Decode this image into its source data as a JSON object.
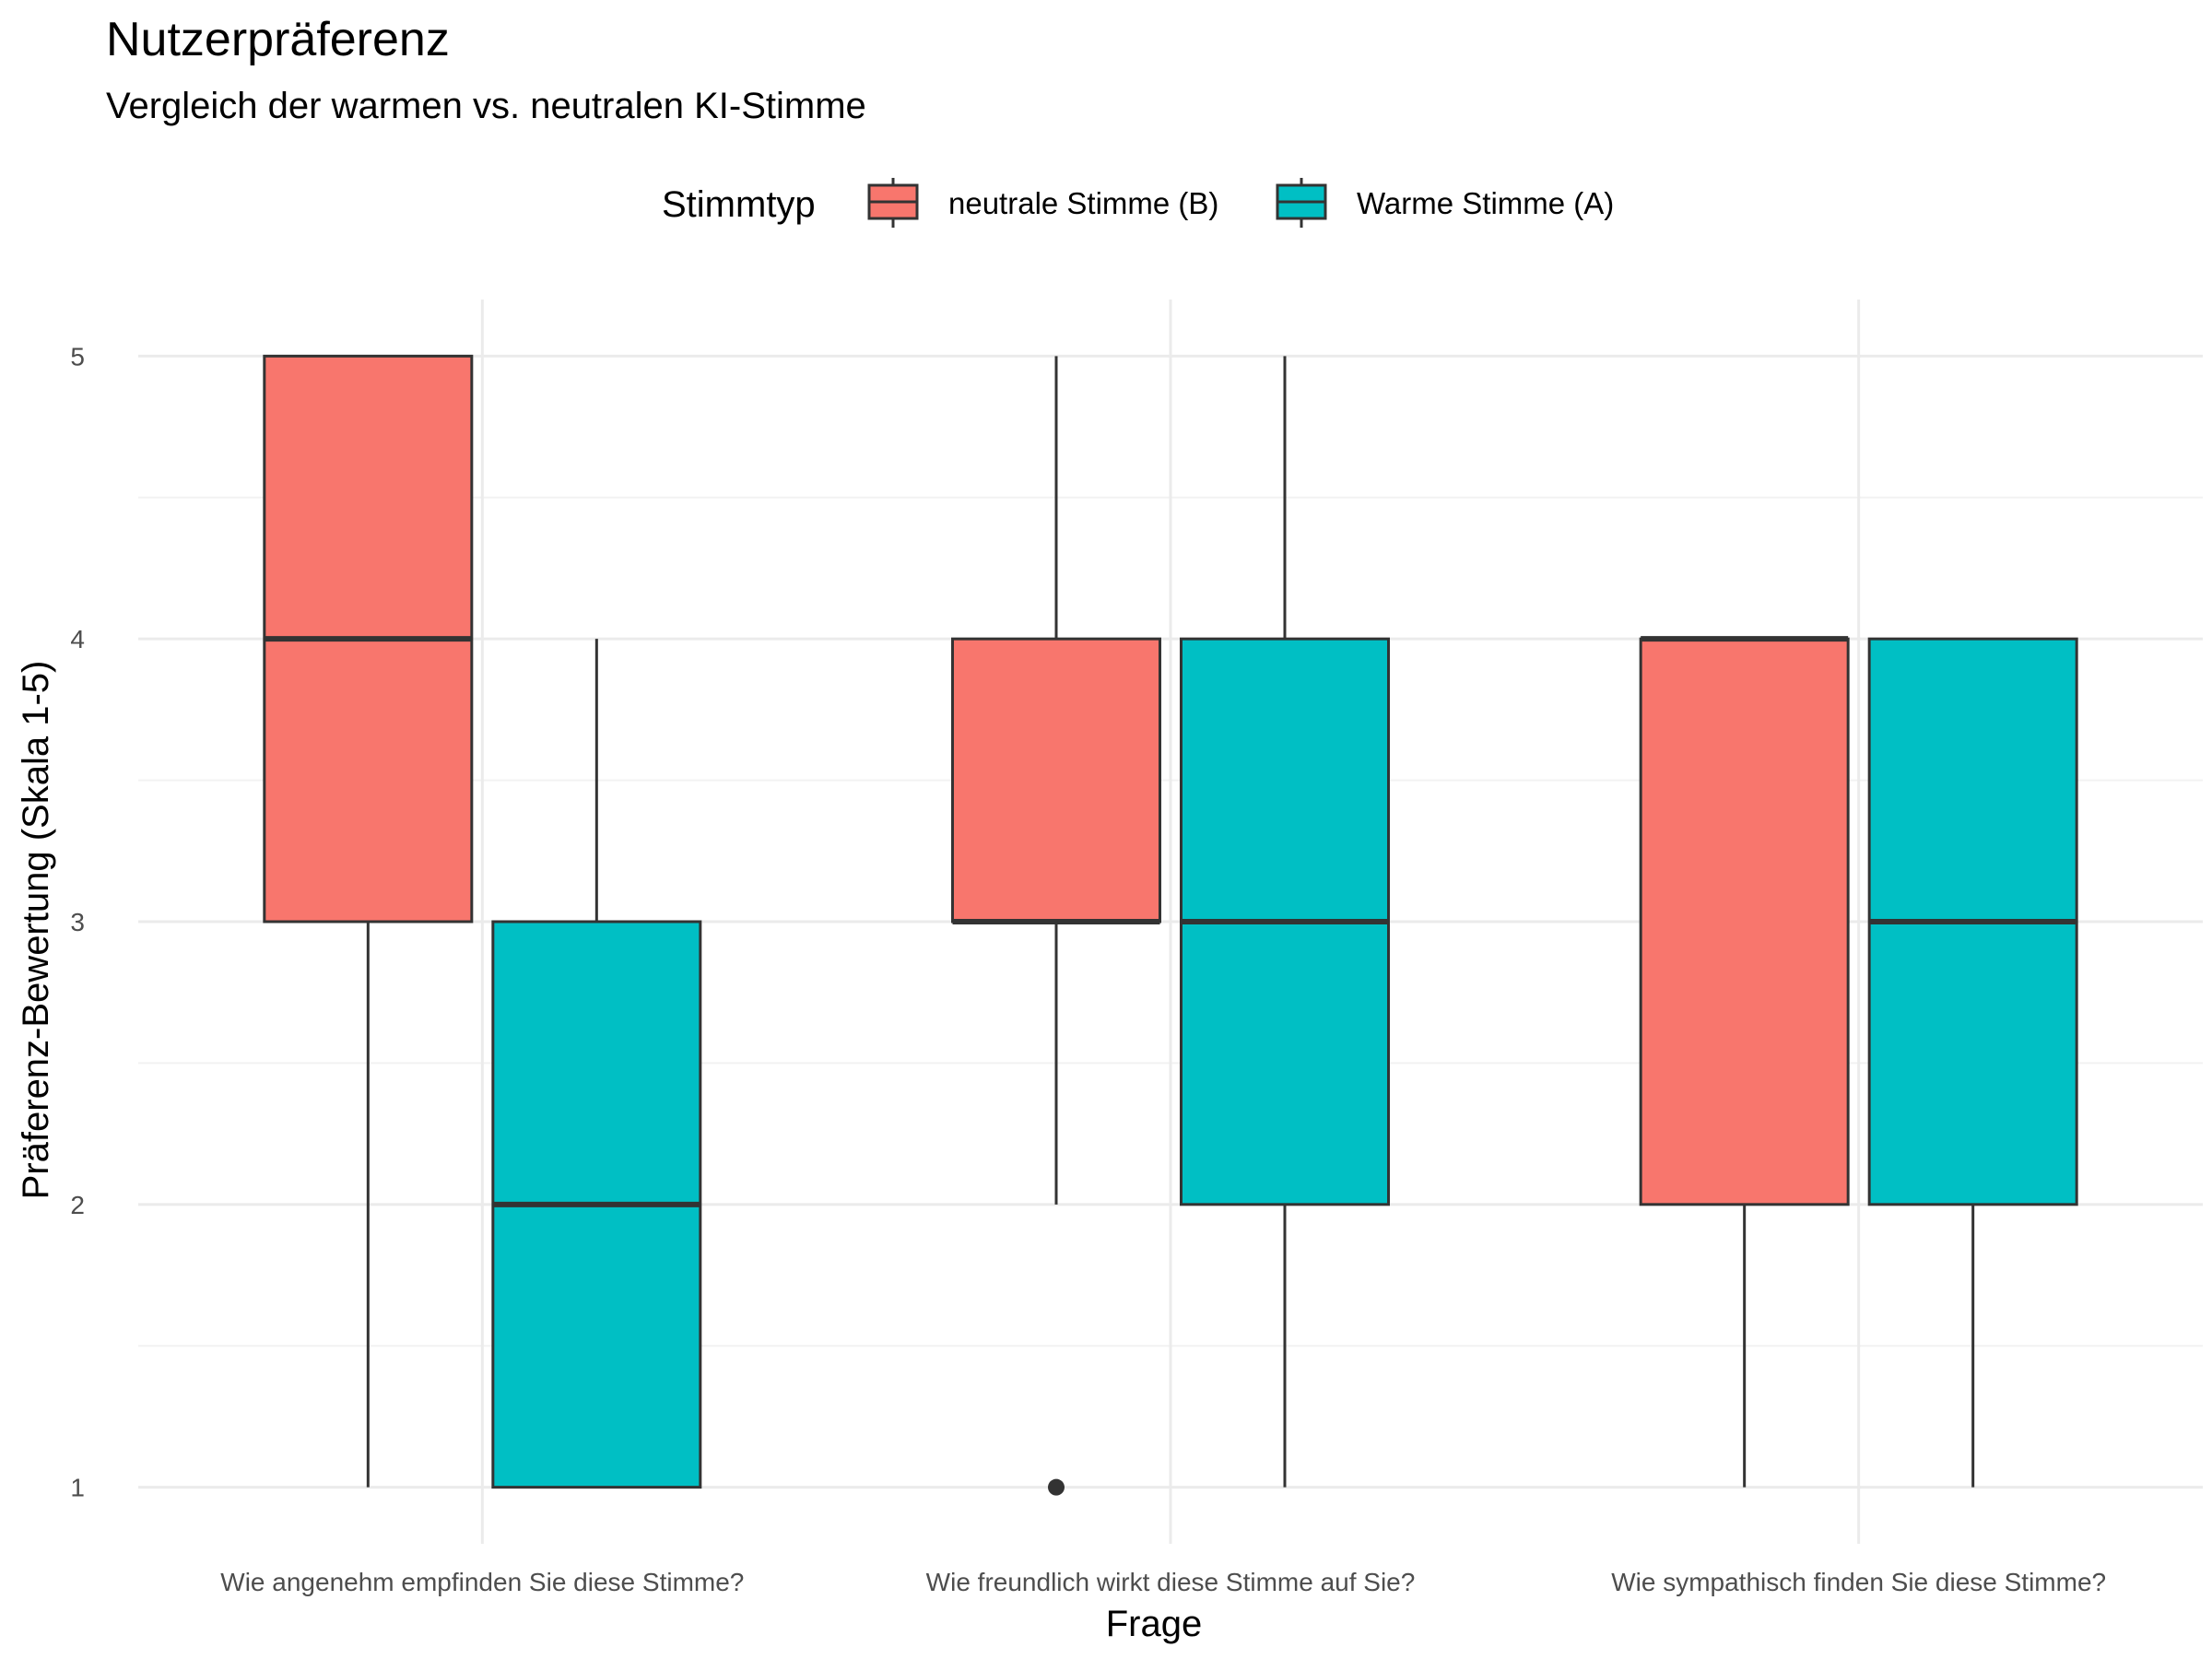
{
  "chart_data": {
    "type": "boxplot",
    "title": "Nutzerpräferenz",
    "subtitle": "Vergleich der warmen vs. neutralen KI-Stimme",
    "xlabel": "Frage",
    "ylabel": "Präferenz-Bewertung (Skala 1-5)",
    "ylim": [
      0.8,
      5.2
    ],
    "yticks": [
      1,
      2,
      3,
      4,
      5
    ],
    "grid": true,
    "legend": {
      "title": "Stimmtyp",
      "position": "top"
    },
    "categories": [
      "Wie angenehm empfinden Sie diese Stimme?",
      "Wie freundlich wirkt diese Stimme auf Sie?",
      "Wie sympathisch finden Sie diese Stimme?"
    ],
    "series": [
      {
        "name": "neutrale Stimme (B)",
        "color": "#F8766D",
        "boxes": [
          {
            "min": 1,
            "q1": 3,
            "median": 4,
            "q3": 5,
            "max": 5,
            "outliers": []
          },
          {
            "min": 2,
            "q1": 3,
            "median": 3,
            "q3": 4,
            "max": 5,
            "outliers": [
              1
            ]
          },
          {
            "min": 1,
            "q1": 2,
            "median": 4,
            "q3": 4,
            "max": 4,
            "outliers": []
          }
        ]
      },
      {
        "name": "Warme Stimme (A)",
        "color": "#00BFC4",
        "boxes": [
          {
            "min": 1,
            "q1": 1,
            "median": 2,
            "q3": 3,
            "max": 4,
            "outliers": []
          },
          {
            "min": 1,
            "q1": 2,
            "median": 3,
            "q3": 4,
            "max": 5,
            "outliers": []
          },
          {
            "min": 1,
            "q1": 2,
            "median": 3,
            "q3": 4,
            "max": 4,
            "outliers": []
          }
        ]
      }
    ]
  }
}
